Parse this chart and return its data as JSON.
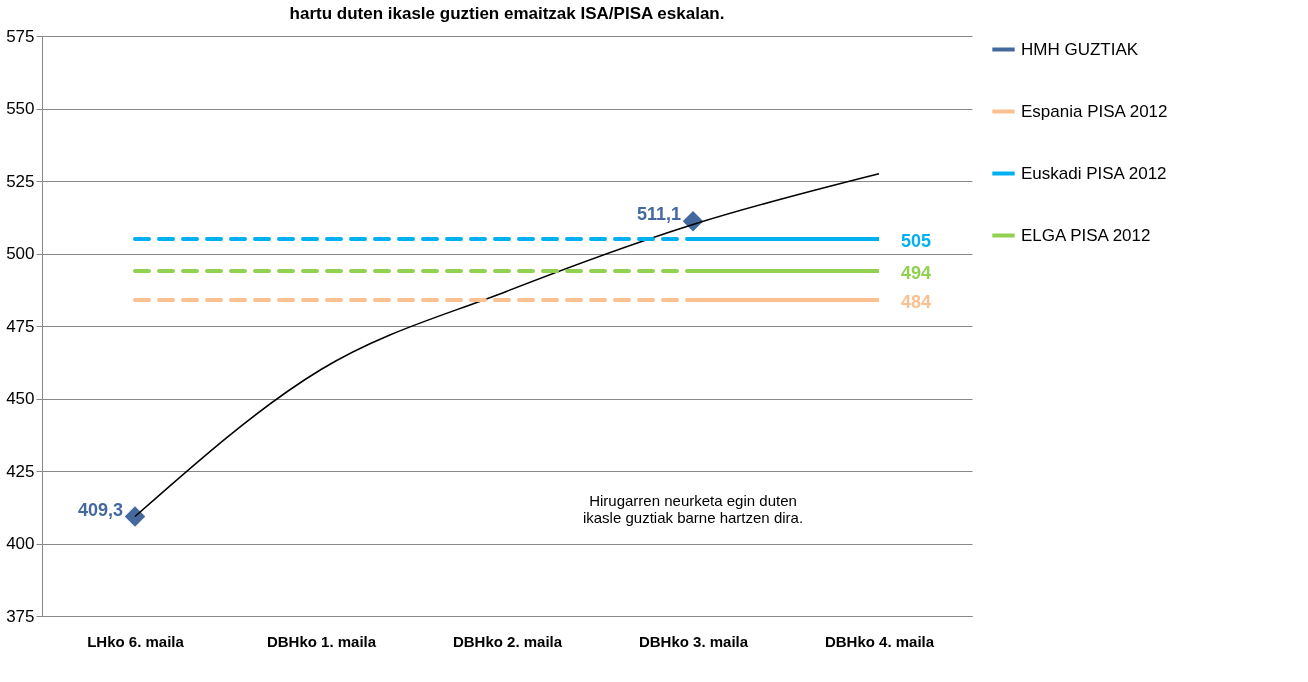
{
  "chart_data": {
    "type": "line",
    "title": "hartu duten ikasle guztien emaitzak ISA/PISA eskalan.",
    "categories": [
      "LHko 6. maila",
      "DBHko 1. maila",
      "DBHko 2. maila",
      "DBHko 3. maila",
      "DBHko 4. maila"
    ],
    "series": [
      {
        "name": "HMH GUZTIAK",
        "type": "scatter",
        "color": "#44699e",
        "marker": "diamond",
        "line_style": "solid",
        "values": [
          409.3,
          null,
          null,
          511.1,
          null
        ],
        "value_labels": [
          "409,3",
          null,
          null,
          "511,1",
          null
        ]
      },
      {
        "type": "line",
        "color": "#000000",
        "line_style": "solid",
        "values": [
          409.3,
          460,
          487,
          510,
          527.5
        ]
      },
      {
        "color": "#fac090",
        "line_style": "dashed",
        "values": [
          484,
          484,
          484,
          484,
          null
        ]
      },
      {
        "name": "Espania PISA 2012",
        "color": "#fac090",
        "line_style": "solid",
        "values": [
          null,
          null,
          null,
          484,
          484
        ],
        "value_labels": [
          null,
          null,
          null,
          null,
          "484"
        ]
      },
      {
        "color": "#00b0f0",
        "line_style": "dashed",
        "values": [
          505,
          505,
          505,
          505,
          null
        ]
      },
      {
        "name": "Euskadi PISA 2012",
        "color": "#00b0f0",
        "line_style": "solid",
        "values": [
          null,
          null,
          null,
          505,
          505
        ],
        "value_labels": [
          null,
          null,
          null,
          null,
          "505"
        ]
      },
      {
        "color": "#92d050",
        "line_style": "dashed",
        "values": [
          494,
          494,
          494,
          494,
          null
        ]
      },
      {
        "name": "ELGA PISA 2012",
        "color": "#92d050",
        "line_style": "solid",
        "values": [
          null,
          null,
          null,
          494,
          494
        ],
        "value_labels": [
          null,
          null,
          null,
          null,
          "494"
        ]
      }
    ],
    "ylim": [
      375,
      575
    ],
    "yticks": [
      375,
      400,
      425,
      450,
      475,
      500,
      525,
      550,
      575
    ],
    "grid": "y",
    "legend": "right",
    "annotations": [
      "Hirugarren neurketa egin duten\nikasle guztiak barne hartzen dira."
    ]
  }
}
